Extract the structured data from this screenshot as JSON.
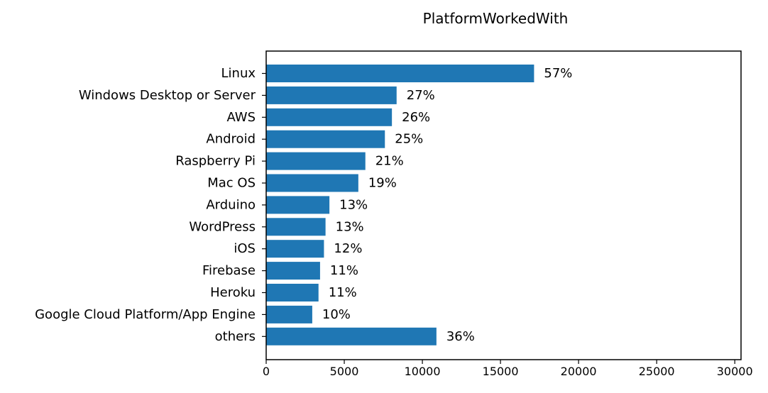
{
  "chart_data": {
    "type": "bar",
    "orientation": "horizontal",
    "title": "PlatformWorkedWith",
    "xlabel": "",
    "ylabel": "",
    "xlim": [
      0,
      30400
    ],
    "xticks": [
      0,
      5000,
      10000,
      15000,
      20000,
      25000,
      30000
    ],
    "grid": false,
    "bar_color": "#1f77b4",
    "categories": [
      "Linux",
      "Windows Desktop or Server",
      "AWS",
      "Android",
      "Raspberry Pi",
      "Mac OS",
      "Arduino",
      "WordPress",
      "iOS",
      "Firebase",
      "Heroku",
      "Google Cloud Platform/App Engine",
      "others"
    ],
    "values": [
      17150,
      8350,
      8050,
      7600,
      6350,
      5900,
      4050,
      3800,
      3700,
      3450,
      3350,
      2950,
      10900
    ],
    "labels": [
      "57%",
      "27%",
      "26%",
      "25%",
      "21%",
      "19%",
      "13%",
      "13%",
      "12%",
      "11%",
      "11%",
      "10%",
      "36%"
    ]
  }
}
